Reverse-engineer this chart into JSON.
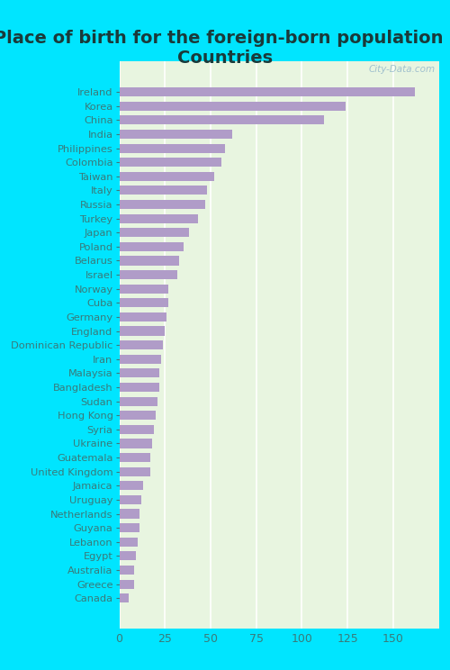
{
  "title": "Place of birth for the foreign-born population -\nCountries",
  "categories": [
    "Ireland",
    "Korea",
    "China",
    "India",
    "Philippines",
    "Colombia",
    "Taiwan",
    "Italy",
    "Russia",
    "Turkey",
    "Japan",
    "Poland",
    "Belarus",
    "Israel",
    "Norway",
    "Cuba",
    "Germany",
    "England",
    "Dominican Republic",
    "Iran",
    "Malaysia",
    "Bangladesh",
    "Sudan",
    "Hong Kong",
    "Syria",
    "Ukraine",
    "Guatemala",
    "United Kingdom",
    "Jamaica",
    "Uruguay",
    "Netherlands",
    "Guyana",
    "Lebanon",
    "Egypt",
    "Australia",
    "Greece",
    "Canada"
  ],
  "values": [
    162,
    124,
    112,
    62,
    58,
    56,
    52,
    48,
    47,
    43,
    38,
    35,
    33,
    32,
    27,
    27,
    26,
    25,
    24,
    23,
    22,
    22,
    21,
    20,
    19,
    18,
    17,
    17,
    13,
    12,
    11,
    11,
    10,
    9,
    8,
    8,
    5
  ],
  "bar_color": "#b09cc8",
  "background_color": "#e8f5e0",
  "outer_background": "#00e5ff",
  "xlim": [
    0,
    175
  ],
  "xticks": [
    0,
    25,
    50,
    75,
    100,
    125,
    150
  ],
  "title_fontsize": 14,
  "tick_label_fontsize": 8.2,
  "axis_tick_fontsize": 9,
  "watermark": "City-Data.com"
}
